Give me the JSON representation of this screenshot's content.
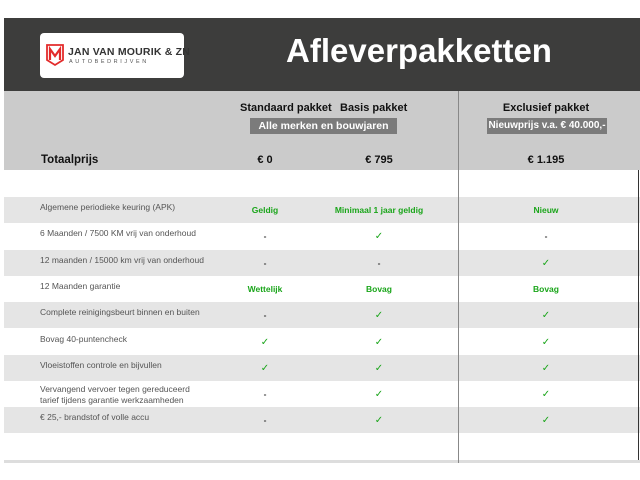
{
  "header": {
    "logo_name": "JAN VAN MOURIK & ZN",
    "logo_sub": "AUTOBEDRIJVEN",
    "logo_letter": "M",
    "title": "Afleverpakketten"
  },
  "colors": {
    "header_bg": "#3d3d3c",
    "accent_green": "#1aa51a",
    "logo_red": "#e32b2b"
  },
  "packages": {
    "standard": "Standaard pakket",
    "basis": "Basis pakket",
    "exclusief": "Exclusief pakket",
    "badge_left": "Alle merken en bouwjaren",
    "badge_right": "Nieuwprijs v.a. € 40.000,-"
  },
  "total": {
    "label": "Totaalprijs",
    "standard": "€ 0",
    "basis": "€ 795",
    "exclusief": "€ 1.195"
  },
  "rows": [
    {
      "label": "Algemene periodieke keuring (APK)",
      "standard": "Geldig",
      "basis": "Minimaal 1 jaar geldig",
      "exclusief": "Nieuw"
    },
    {
      "label": "6 Maanden / 7500 KM vrij van onderhoud",
      "standard": "-",
      "basis": "✓",
      "exclusief": "-"
    },
    {
      "label": "12 maanden / 15000 km vrij van onderhoud",
      "standard": "-",
      "basis": "-",
      "exclusief": "✓"
    },
    {
      "label": "12 Maanden  garantie",
      "standard": "Wettelijk",
      "basis": "Bovag",
      "exclusief": "Bovag"
    },
    {
      "label": "Complete reinigingsbeurt binnen en buiten",
      "standard": "-",
      "basis": "✓",
      "exclusief": "✓"
    },
    {
      "label": "Bovag 40-puntencheck",
      "standard": "✓",
      "basis": "✓",
      "exclusief": "✓"
    },
    {
      "label": "Vloeistoffen controle en bijvullen",
      "standard": "✓",
      "basis": "✓",
      "exclusief": "✓"
    },
    {
      "label": "Vervangend vervoer tegen gereduceerd tarief tijdens garantie werkzaamheden",
      "standard": "-",
      "basis": "✓",
      "exclusief": "✓"
    },
    {
      "label": "€ 25,- brandstof of  volle accu",
      "standard": "-",
      "basis": "✓",
      "exclusief": "✓"
    }
  ]
}
